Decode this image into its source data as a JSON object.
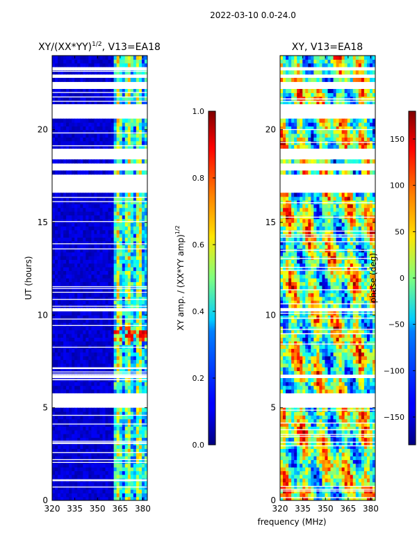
{
  "suptitle": "2022-03-10 0.0-24.0",
  "chart_data": [
    {
      "type": "heatmap",
      "title": "XY/(XX*YY)",
      "title_superscript": "1/2",
      "title_suffix": ", V13=EA18",
      "xlabel": "",
      "ylabel": "UT (hours)",
      "xlim": [
        320,
        383
      ],
      "ylim": [
        0,
        24
      ],
      "xticks": [
        "320",
        "335",
        "350",
        "365",
        "380"
      ],
      "xtick_values": [
        320,
        335,
        350,
        365,
        380
      ],
      "yticks": [
        "0",
        "5",
        "10",
        "15",
        "20"
      ],
      "ytick_values": [
        0,
        5,
        10,
        15,
        20
      ],
      "colorbar": {
        "label": "XY amp. / (XX*YY amp)",
        "label_superscript": "1/2",
        "range": [
          0,
          1
        ],
        "ticks": [
          "0.0",
          "0.2",
          "0.4",
          "0.6",
          "0.8",
          "1.0"
        ],
        "tick_values": [
          0,
          0.2,
          0.4,
          0.6,
          0.8,
          1.0
        ]
      },
      "gaps_hours": [
        [
          5.1,
          5.8
        ],
        [
          6.6,
          6.8
        ],
        [
          10.2,
          10.3
        ],
        [
          16.7,
          17.6
        ],
        [
          17.9,
          18.1
        ],
        [
          18.5,
          19.0
        ],
        [
          20.6,
          21.4
        ],
        [
          22.3,
          22.5
        ],
        [
          22.9,
          23.0
        ],
        [
          23.3,
          23.4
        ]
      ]
    },
    {
      "type": "heatmap",
      "title": "XY, V13=EA18",
      "xlabel": "frequency (MHz)",
      "ylabel": "",
      "xlim": [
        320,
        383
      ],
      "ylim": [
        0,
        24
      ],
      "xticks": [
        "320",
        "335",
        "350",
        "365",
        "380"
      ],
      "xtick_values": [
        320,
        335,
        350,
        365,
        380
      ],
      "yticks": [
        "0",
        "5",
        "10",
        "15",
        "20"
      ],
      "ytick_values": [
        0,
        5,
        10,
        15,
        20
      ],
      "colorbar": {
        "label": "phase (deg)",
        "range": [
          -180,
          180
        ],
        "ticks": [
          "−150",
          "−100",
          "−50",
          "0",
          "50",
          "100",
          "150"
        ],
        "tick_values": [
          -150,
          -100,
          -50,
          0,
          50,
          100,
          150
        ]
      },
      "gaps_hours": [
        [
          5.1,
          5.8
        ],
        [
          6.6,
          6.8
        ],
        [
          10.2,
          10.3
        ],
        [
          16.7,
          17.6
        ],
        [
          17.9,
          18.1
        ],
        [
          18.5,
          19.0
        ],
        [
          20.6,
          21.4
        ],
        [
          22.3,
          22.5
        ],
        [
          22.9,
          23.0
        ],
        [
          23.3,
          23.4
        ]
      ]
    }
  ]
}
